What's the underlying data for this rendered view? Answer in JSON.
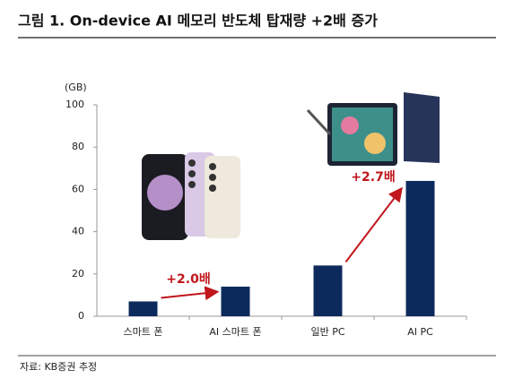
{
  "chart_data": {
    "type": "bar",
    "title": "그림 1. On-device AI 메모리 반도체 탑재량 +2배 증가",
    "y_unit": "(GB)",
    "categories": [
      "스마트 폰",
      "AI 스마트 폰",
      "일반 PC",
      "AI PC"
    ],
    "values": [
      7,
      14,
      24,
      64
    ],
    "color": "#0d2a5c",
    "ylim": [
      0,
      100
    ],
    "yticks": [
      0,
      20,
      40,
      60,
      80,
      100
    ],
    "grid": false,
    "annotations": [
      "+2.0배",
      "+2.7배"
    ],
    "annotation_color": "#c0161c",
    "source": "자료: KB증권 추정"
  }
}
